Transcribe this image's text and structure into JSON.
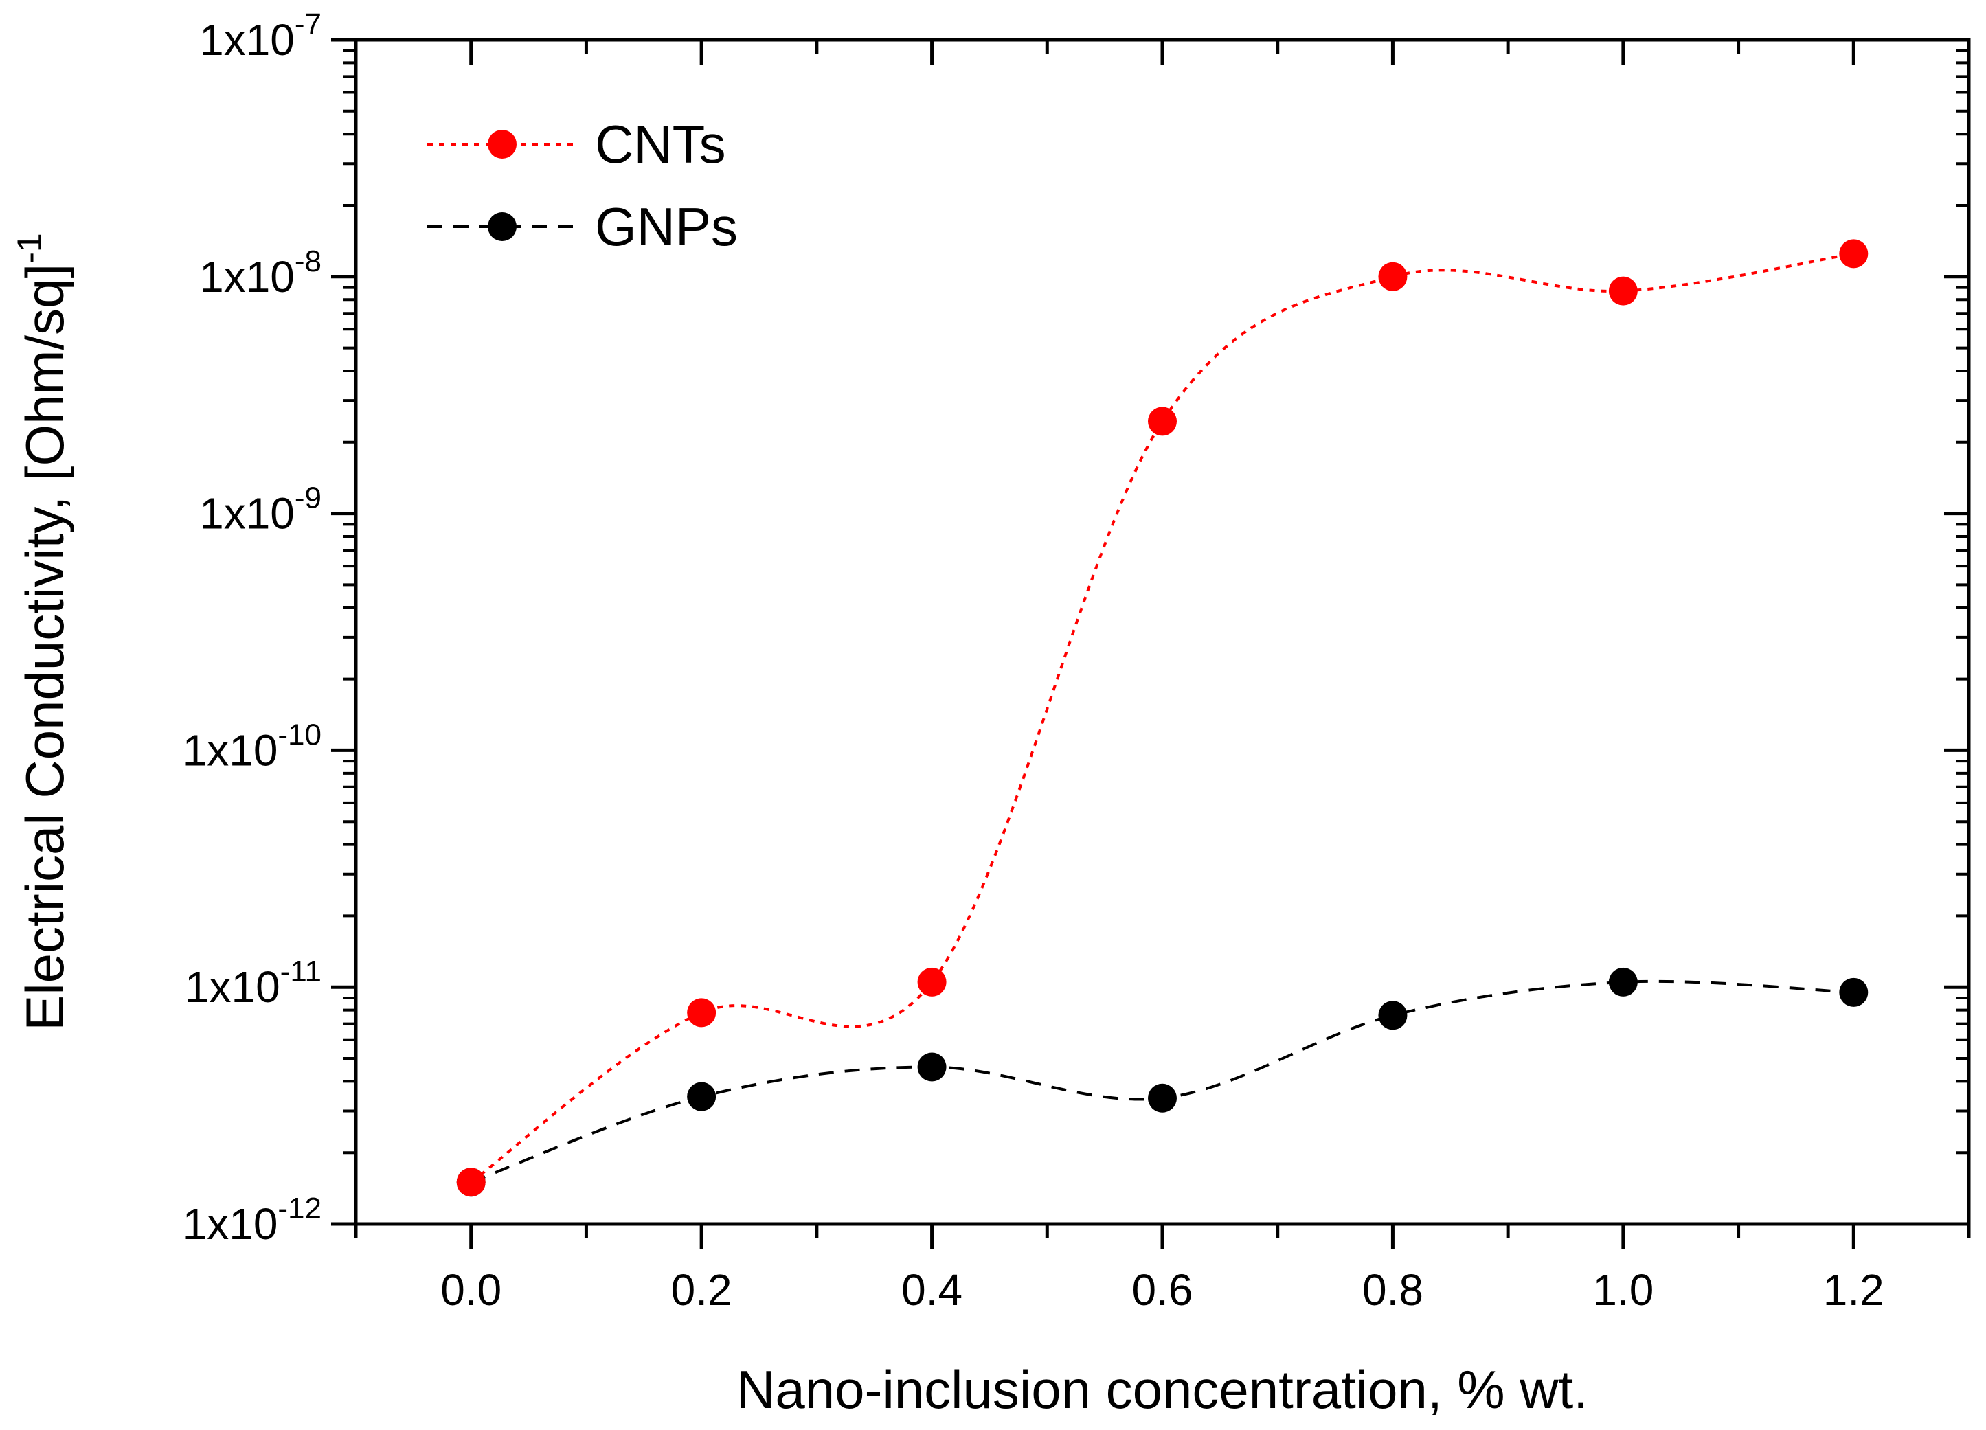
{
  "chart_data": {
    "type": "line",
    "xlabel": "Nano-inclusion concentration, % wt.",
    "ylabel": "Electrical Conductivity, [Ohm/sq]",
    "ylabel_sup": "-1",
    "xlim": [
      -0.1,
      1.3
    ],
    "ylim_log10": [
      -12,
      -7
    ],
    "yscale": "log",
    "x_ticks": [
      "0.0",
      "0.2",
      "0.4",
      "0.6",
      "0.8",
      "1.0",
      "1.2"
    ],
    "x_tick_values": [
      0.0,
      0.2,
      0.4,
      0.6,
      0.8,
      1.0,
      1.2
    ],
    "y_ticks": [
      {
        "base": "1x10",
        "exp": "-7"
      },
      {
        "base": "1x10",
        "exp": "-8"
      },
      {
        "base": "1x10",
        "exp": "-9"
      },
      {
        "base": "1x10",
        "exp": "-10"
      },
      {
        "base": "1x10",
        "exp": "-11"
      },
      {
        "base": "1x10",
        "exp": "-12"
      }
    ],
    "y_tick_exponents": [
      -7,
      -8,
      -9,
      -10,
      -11,
      -12
    ],
    "legend_position": "top-left",
    "series": [
      {
        "name": "CNTs",
        "color": "#ff0000",
        "line_style": "dotted",
        "x": [
          0.0,
          0.2,
          0.4,
          0.6,
          0.8,
          1.0,
          1.2
        ],
        "values": [
          1.5e-12,
          7.8e-12,
          1.05e-11,
          2.45e-09,
          1e-08,
          8.7e-09,
          1.25e-08
        ]
      },
      {
        "name": "GNPs",
        "color": "#000000",
        "line_style": "dashed",
        "x": [
          0.0,
          0.2,
          0.4,
          0.6,
          0.8,
          1.0,
          1.2
        ],
        "values": [
          1.5e-12,
          3.45e-12,
          4.6e-12,
          3.4e-12,
          7.6e-12,
          1.05e-11,
          9.5e-12
        ]
      }
    ]
  }
}
